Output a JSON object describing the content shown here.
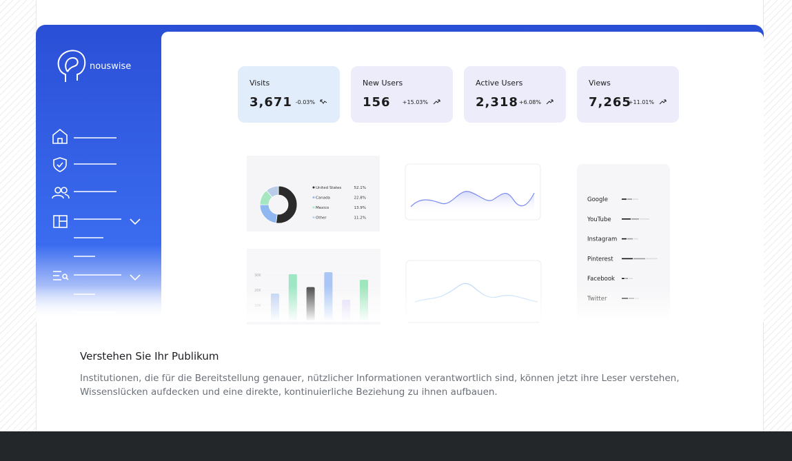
{
  "brand": "nouswise",
  "stats": [
    {
      "label": "Visits",
      "value": "3,671",
      "change": "-0.03%"
    },
    {
      "label": "New Users",
      "value": "156",
      "change": "+15.03%"
    },
    {
      "label": "Active Users",
      "value": "2,318",
      "change": "+6.08%"
    },
    {
      "label": "Views",
      "value": "7,265",
      "change": "+11.01%"
    }
  ],
  "donut": {
    "labels": [
      "United States",
      "Canada",
      "Mexico",
      "Other"
    ],
    "values": [
      52.1,
      22.8,
      13.9,
      11.2
    ],
    "value_labels": [
      "52.1%",
      "22.8%",
      "13.9%",
      "11.2%"
    ],
    "colors": [
      "#2b2b2b",
      "#8fb8f0",
      "#a6e6c0",
      "#b9cde9"
    ]
  },
  "bars": {
    "values": [
      17700,
      30500,
      22000,
      31800,
      13600,
      26800
    ],
    "colors": [
      "#b8cdf2",
      "#9ee6c4",
      "#4a4a4a",
      "#a9c6f5",
      "#dcd3f6",
      "#9ee6bc"
    ],
    "ylim": [
      0,
      35000
    ],
    "yticks": [
      {
        "value": 30000,
        "label": "30K"
      },
      {
        "value": 20000,
        "label": "20K"
      },
      {
        "value": 10000,
        "label": "10K"
      }
    ]
  },
  "sources": [
    "Google",
    "YouTube",
    "Instagram",
    "Pinterest",
    "Facebook",
    "Twitter"
  ],
  "section": {
    "title": "Verstehen Sie Ihr Publikum",
    "text": "Institutionen, die für die Bereitstellung genauer, nützlicher Informationen verantwortlich sind, können jetzt ihre Leser verstehen, Wissenslücken aufdecken und eine direkte, kontinuierliche Beziehung zu ihnen aufbauen."
  }
}
